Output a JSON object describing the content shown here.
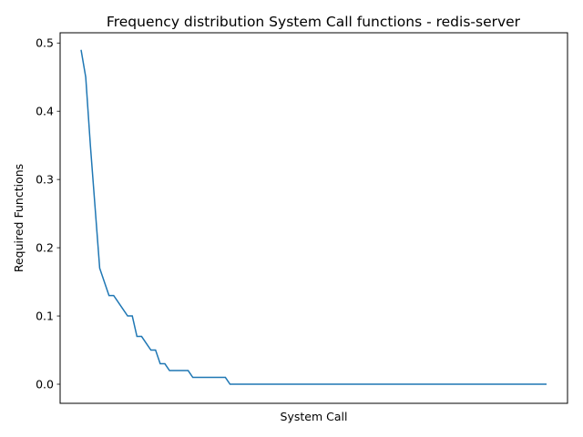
{
  "chart_data": {
    "type": "line",
    "title": "Frequency distribution System Call functions  - redis-server",
    "xlabel": "System Call",
    "ylabel": "Required Functions",
    "ylim": [
      -0.028,
      0.515
    ],
    "yticks": [
      0.0,
      0.1,
      0.2,
      0.3,
      0.4,
      0.5
    ],
    "ytick_labels": [
      "0.0",
      "0.1",
      "0.2",
      "0.3",
      "0.4",
      "0.5"
    ],
    "xticks_visible": false,
    "grid": false,
    "line_color": "#1f77b4",
    "series": [
      {
        "values": [
          0.49,
          0.45,
          0.35,
          0.26,
          0.17,
          0.15,
          0.13,
          0.13,
          0.12,
          0.11,
          0.1,
          0.1,
          0.07,
          0.07,
          0.06,
          0.05,
          0.05,
          0.03,
          0.03,
          0.02,
          0.02,
          0.02,
          0.02,
          0.02,
          0.01,
          0.01,
          0.01,
          0.01,
          0.01,
          0.01,
          0.01,
          0.01,
          0.0,
          0.0,
          0.0,
          0.0,
          0.0,
          0.0,
          0.0,
          0.0,
          0.0,
          0.0,
          0.0,
          0.0,
          0.0,
          0.0,
          0.0,
          0.0,
          0.0,
          0.0,
          0.0,
          0.0,
          0.0,
          0.0,
          0.0,
          0.0,
          0.0,
          0.0,
          0.0,
          0.0,
          0.0,
          0.0,
          0.0,
          0.0,
          0.0,
          0.0,
          0.0,
          0.0,
          0.0,
          0.0,
          0.0,
          0.0,
          0.0,
          0.0,
          0.0,
          0.0,
          0.0,
          0.0,
          0.0,
          0.0,
          0.0,
          0.0,
          0.0,
          0.0,
          0.0,
          0.0,
          0.0,
          0.0,
          0.0,
          0.0,
          0.0,
          0.0,
          0.0,
          0.0,
          0.0,
          0.0,
          0.0,
          0.0,
          0.0,
          0.0,
          0.0
        ]
      }
    ]
  }
}
